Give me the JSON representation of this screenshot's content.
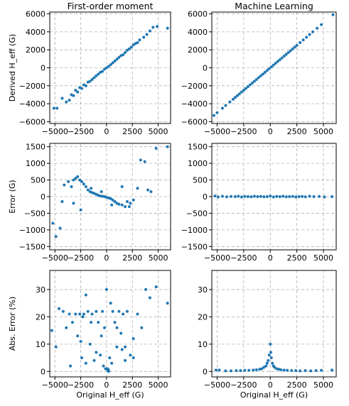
{
  "chart_data": [
    {
      "type": "scatter",
      "title": "First-order moment",
      "xlabel": "",
      "ylabel": "Derived H_eff (G)",
      "xlim": [
        -5500,
        6200
      ],
      "ylim": [
        -6200,
        6200
      ],
      "xticks": [
        -5000,
        -2500,
        0,
        2500,
        5000
      ],
      "xtick_labels": [
        "−5000",
        "−2500",
        "0",
        "2500",
        "5000"
      ],
      "yticks": [
        -6000,
        -4000,
        -2000,
        0,
        2000,
        4000,
        6000
      ],
      "ytick_labels": [
        "−6000",
        "−4000",
        "−2000",
        "0",
        "2000",
        "4000",
        "6000"
      ],
      "grid": true,
      "color": "#1f77b4",
      "x": [
        -5100,
        -4800,
        -4300,
        -3900,
        -3600,
        -3400,
        -3200,
        -3000,
        -2800,
        -2600,
        -2400,
        -2200,
        -2000,
        -1800,
        -1600,
        -1400,
        -1200,
        -1000,
        -800,
        -600,
        -400,
        -200,
        0,
        200,
        400,
        600,
        800,
        1000,
        1200,
        1400,
        1600,
        1800,
        2000,
        2200,
        2400,
        2600,
        2800,
        3000,
        3200,
        3600,
        3900,
        4200,
        4500,
        4900,
        5900
      ],
      "y": [
        -4500,
        -4500,
        -3400,
        -3800,
        -3600,
        -3000,
        -3100,
        -2500,
        -2700,
        -2200,
        -2300,
        -1900,
        -2000,
        -1600,
        -1500,
        -1300,
        -1100,
        -900,
        -700,
        -500,
        -400,
        -150,
        0,
        150,
        350,
        550,
        750,
        950,
        1150,
        1350,
        1450,
        1700,
        1950,
        2100,
        2300,
        2550,
        2700,
        2800,
        3100,
        3400,
        3700,
        4100,
        4500,
        4600,
        4400
      ]
    },
    {
      "type": "scatter",
      "title": "Machine Learning",
      "xlabel": "",
      "ylabel": "",
      "xlim": [
        -5500,
        6200
      ],
      "ylim": [
        -6200,
        6200
      ],
      "xticks": [
        -5000,
        -2500,
        0,
        2500,
        5000
      ],
      "xtick_labels": [
        "−5000",
        "−2500",
        "0",
        "2500",
        "5000"
      ],
      "yticks": [
        -6000,
        -4000,
        -2000,
        0,
        2000,
        4000,
        6000
      ],
      "ytick_labels": [
        "−6000",
        "−4000",
        "−2000",
        "0",
        "2000",
        "4000",
        "6000"
      ],
      "grid": true,
      "color": "#1f77b4",
      "x": [
        -5300,
        -5000,
        -4500,
        -4200,
        -3800,
        -3500,
        -3300,
        -3100,
        -2900,
        -2700,
        -2500,
        -2300,
        -2100,
        -1900,
        -1700,
        -1500,
        -1300,
        -1100,
        -900,
        -700,
        -500,
        -300,
        -100,
        100,
        300,
        500,
        700,
        900,
        1100,
        1300,
        1500,
        1700,
        1900,
        2100,
        2300,
        2500,
        2800,
        3100,
        3400,
        3700,
        4000,
        4400,
        4800,
        5900
      ],
      "y": [
        -5300,
        -5000,
        -4500,
        -4200,
        -3800,
        -3500,
        -3300,
        -3100,
        -2900,
        -2700,
        -2500,
        -2300,
        -2100,
        -1900,
        -1700,
        -1500,
        -1300,
        -1100,
        -900,
        -700,
        -500,
        -300,
        -100,
        100,
        300,
        500,
        700,
        900,
        1100,
        1300,
        1500,
        1700,
        1900,
        2100,
        2300,
        2500,
        2800,
        3100,
        3400,
        3700,
        4000,
        4400,
        4800,
        5900
      ]
    },
    {
      "type": "scatter",
      "title": "",
      "xlabel": "",
      "ylabel": "Error (G)",
      "xlim": [
        -5500,
        6200
      ],
      "ylim": [
        -1600,
        1600
      ],
      "xticks": [
        -5000,
        -2500,
        0,
        2500,
        5000
      ],
      "xtick_labels": [
        "−5000",
        "−2500",
        "0",
        "2500",
        "5000"
      ],
      "yticks": [
        -1500,
        -1000,
        -500,
        0,
        500,
        1000,
        1500
      ],
      "ytick_labels": [
        "−1500",
        "−1000",
        "−500",
        "0",
        "500",
        "1000",
        "1500"
      ],
      "grid": true,
      "color": "#1f77b4",
      "x": [
        -5200,
        -4900,
        -4500,
        -4300,
        -4100,
        -3700,
        -3400,
        -3200,
        -3000,
        -2800,
        -2600,
        -2400,
        -2200,
        -2000,
        -1800,
        -1600,
        -1400,
        -1200,
        -1000,
        -800,
        -600,
        -400,
        -200,
        0,
        200,
        400,
        600,
        800,
        1000,
        1200,
        1500,
        1800,
        2000,
        2300,
        2600,
        3000,
        3300,
        3700,
        4000,
        4300,
        4800,
        5900,
        -3200,
        -2500,
        -1500,
        -500,
        500,
        1500,
        2200
      ],
      "y": [
        -800,
        -1200,
        -950,
        -150,
        350,
        450,
        300,
        500,
        550,
        600,
        500,
        450,
        380,
        300,
        200,
        150,
        120,
        100,
        70,
        40,
        20,
        10,
        0,
        -20,
        -40,
        -60,
        -100,
        -150,
        -200,
        -230,
        -250,
        -300,
        -150,
        -200,
        -100,
        250,
        1100,
        1050,
        200,
        150,
        1450,
        1500,
        -200,
        -400,
        250,
        150,
        -250,
        300,
        -300
      ]
    },
    {
      "type": "scatter",
      "title": "",
      "xlabel": "",
      "ylabel": "",
      "xlim": [
        -5500,
        6200
      ],
      "ylim": [
        -1600,
        1600
      ],
      "xticks": [
        -5000,
        -2500,
        0,
        2500,
        5000
      ],
      "xtick_labels": [
        "−5000",
        "−2500",
        "0",
        "2500",
        "5000"
      ],
      "yticks": [
        -1500,
        -1000,
        -500,
        0,
        500,
        1000,
        1500
      ],
      "ytick_labels": [
        "−1500",
        "−1000",
        "−500",
        "0",
        "500",
        "1000",
        "1500"
      ],
      "grid": true,
      "color": "#1f77b4",
      "x": [
        -5200,
        -4900,
        -4500,
        -4100,
        -3700,
        -3300,
        -3000,
        -2700,
        -2400,
        -2100,
        -1800,
        -1500,
        -1200,
        -900,
        -600,
        -300,
        0,
        300,
        600,
        900,
        1200,
        1500,
        1800,
        2100,
        2400,
        2700,
        3000,
        3300,
        3700,
        4100,
        4600,
        5100,
        5800
      ],
      "y": [
        20,
        -10,
        10,
        -5,
        5,
        0,
        10,
        -10,
        5,
        0,
        -5,
        10,
        0,
        5,
        -5,
        0,
        15,
        -10,
        5,
        0,
        10,
        -5,
        0,
        5,
        -10,
        0,
        5,
        -5,
        10,
        0,
        5,
        -10,
        0
      ]
    },
    {
      "type": "scatter",
      "title": "",
      "xlabel": "Original H_eff (G)",
      "ylabel": "Abs. Error (%)",
      "xlim": [
        -5500,
        6200
      ],
      "ylim": [
        -2,
        37
      ],
      "xticks": [
        -5000,
        -2500,
        0,
        2500,
        5000
      ],
      "xtick_labels": [
        "−5000",
        "−2500",
        "0",
        "2500",
        "5000"
      ],
      "yticks": [
        0,
        10,
        20,
        30
      ],
      "ytick_labels": [
        "0",
        "10",
        "20",
        "30"
      ],
      "grid": true,
      "color": "#1f77b4",
      "x": [
        -5300,
        -4900,
        -4600,
        -4200,
        -3900,
        -3600,
        -3300,
        -3000,
        -2800,
        -2600,
        -2400,
        -2200,
        -2000,
        -1800,
        -1600,
        -1400,
        -1200,
        -1000,
        -800,
        -600,
        -400,
        -200,
        0,
        100,
        200,
        300,
        400,
        600,
        800,
        1000,
        1200,
        1400,
        1600,
        1800,
        2000,
        2300,
        2600,
        3000,
        3400,
        3800,
        4200,
        4800,
        5900,
        -2500,
        -2000,
        -1500,
        -1000,
        -500,
        500,
        1000,
        1500,
        -300,
        200,
        -100,
        100,
        -2300,
        1800,
        -3500,
        2600
      ],
      "y": [
        15,
        9,
        23,
        22,
        16,
        21,
        18,
        21,
        13,
        21,
        5,
        21,
        28,
        22,
        10,
        21,
        4,
        22,
        18,
        6,
        22,
        16,
        30,
        1,
        0,
        5,
        25,
        22,
        18,
        9,
        22,
        14,
        21,
        4,
        22,
        6,
        12,
        21,
        16,
        30,
        27,
        31,
        25,
        11,
        3,
        18,
        7,
        13,
        3,
        16,
        8,
        2,
        0.5,
        1,
        0.5,
        20,
        9,
        2,
        5
      ]
    },
    {
      "type": "scatter",
      "title": "",
      "xlabel": "Original H_eff (G)",
      "ylabel": "",
      "xlim": [
        -5500,
        6200
      ],
      "ylim": [
        -2,
        37
      ],
      "xticks": [
        -5000,
        -2500,
        0,
        2500,
        5000
      ],
      "xtick_labels": [
        "−5000",
        "−2500",
        "0",
        "2500",
        "5000"
      ],
      "yticks": [
        0,
        10,
        20,
        30
      ],
      "ytick_labels": [
        "0",
        "10",
        "20",
        "30"
      ],
      "grid": true,
      "color": "#1f77b4",
      "x": [
        -5100,
        -4800,
        -4200,
        -3700,
        -3200,
        -2800,
        -2400,
        -2000,
        -1600,
        -1300,
        -1000,
        -800,
        -600,
        -400,
        -300,
        -200,
        -100,
        0,
        50,
        100,
        200,
        300,
        400,
        600,
        800,
        1000,
        1300,
        1600,
        2000,
        2400,
        2800,
        3300,
        3800,
        4300,
        4800,
        5800
      ],
      "y": [
        0.5,
        0.5,
        0.2,
        0.2,
        0.3,
        0.3,
        0.4,
        0.4,
        0.5,
        0.6,
        0.8,
        1,
        1.5,
        2,
        3,
        4,
        6,
        10,
        7,
        5,
        3,
        2,
        1.5,
        1,
        0.8,
        0.6,
        0.5,
        0.4,
        0.3,
        0.3,
        0.2,
        0.3,
        0.2,
        0.3,
        0.4,
        0.5
      ]
    }
  ]
}
